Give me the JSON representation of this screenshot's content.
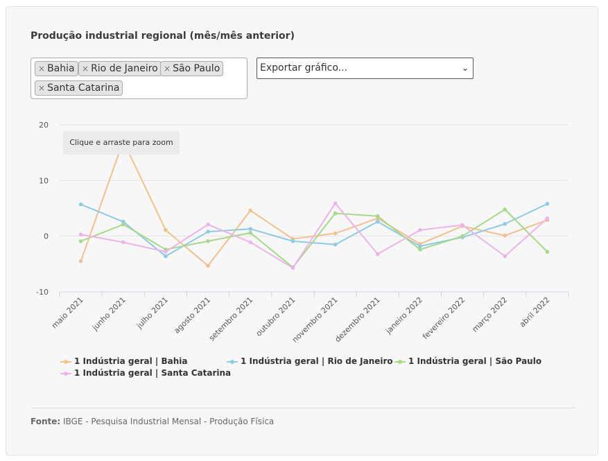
{
  "title": "Produção industrial regional (mês/mês anterior)",
  "filter": {
    "tags": [
      "Bahia",
      "Rio de Janeiro",
      "São Paulo",
      "Santa Catarina"
    ],
    "remove_glyph": "×"
  },
  "export": {
    "placeholder": "Exportar gráfico...",
    "chevron": "⌄"
  },
  "zoom_hint": "Clique e arraste para zoom",
  "source": {
    "label": "Fonte:",
    "text": " IBGE - Pesquisa Industrial Mensal - Produção Física"
  },
  "chart_data": {
    "type": "line",
    "categories": [
      "maio 2021",
      "junho 2021",
      "julho 2021",
      "agosto 2021",
      "setembro 2021",
      "outubro 2021",
      "novembro 2021",
      "dezembro 2021",
      "janeiro 2022",
      "fevereiro 2022",
      "março 2022",
      "abril 2022"
    ],
    "ylim": [
      -10,
      20
    ],
    "yticks": [
      -10,
      0,
      10,
      20
    ],
    "grid": true,
    "legend_position": "bottom",
    "series": [
      {
        "name": "1 Indústria geral | Bahia",
        "color": "#f2c08e",
        "values": [
          -4.5,
          17.1,
          1.1,
          -5.3,
          4.6,
          -0.5,
          0.5,
          3.2,
          -1.4,
          1.8,
          0.1,
          2.9
        ]
      },
      {
        "name": "1 Indústria geral | Rio de Janeiro",
        "color": "#8ecae6",
        "values": [
          5.7,
          2.6,
          -3.6,
          0.8,
          1.3,
          -0.9,
          -1.5,
          2.6,
          -1.8,
          -0.2,
          2.2,
          5.8
        ]
      },
      {
        "name": "1 Indústria geral | São Paulo",
        "color": "#a6d88b",
        "values": [
          -0.9,
          2.1,
          -2.4,
          -0.9,
          0.6,
          -5.6,
          4.1,
          3.6,
          -2.4,
          0.0,
          4.8,
          -2.8
        ]
      },
      {
        "name": "1 Indústria geral | Santa Catarina",
        "color": "#ecb3ea",
        "values": [
          0.3,
          -1.1,
          -2.8,
          2.1,
          -1.1,
          -5.7,
          5.9,
          -3.2,
          1.1,
          2.0,
          -3.6,
          3.2
        ]
      }
    ]
  }
}
